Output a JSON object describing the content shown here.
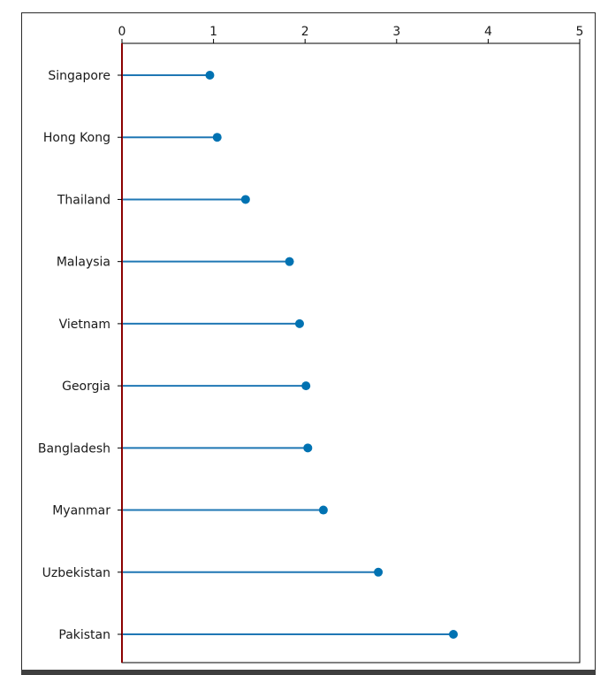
{
  "chart_data": {
    "type": "lollipop",
    "orientation": "horizontal",
    "categories": [
      "Singapore",
      "Hong Kong",
      "Thailand",
      "Malaysia",
      "Vietnam",
      "Georgia",
      "Bangladesh",
      "Myanmar",
      "Uzbekistan",
      "Pakistan"
    ],
    "values": [
      0.96,
      1.04,
      1.35,
      1.83,
      1.94,
      2.01,
      2.03,
      2.2,
      2.8,
      3.62
    ],
    "xlim": [
      0,
      5
    ],
    "x_ticks": [
      0,
      1,
      2,
      3,
      4,
      5
    ],
    "x_tick_labels": [
      "0",
      "1",
      "2",
      "3",
      "4",
      "5"
    ],
    "x_axis_position": "top",
    "title": "",
    "xlabel": "",
    "ylabel": "",
    "grid": false,
    "colors": {
      "stem": "#1f77b4",
      "marker": "#0072b2",
      "baseline": "#8b0000",
      "axes": "#000000"
    }
  }
}
